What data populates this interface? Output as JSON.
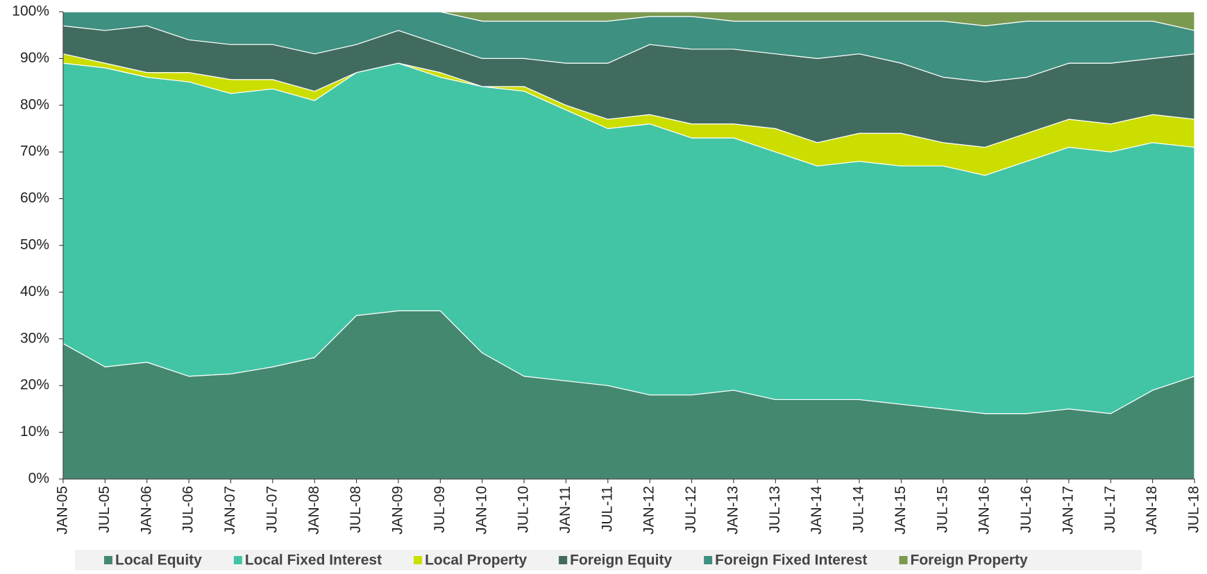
{
  "chart_data": {
    "type": "stacked_area_100",
    "categories": [
      "JAN-05",
      "JUL-05",
      "JAN-06",
      "JUL-06",
      "JAN-07",
      "JUL-07",
      "JAN-08",
      "JUL-08",
      "JAN-09",
      "JUL-09",
      "JAN-10",
      "JUL-10",
      "JAN-11",
      "JUL-11",
      "JAN-12",
      "JUL-12",
      "JAN-13",
      "JUL-13",
      "JAN-14",
      "JUL-14",
      "JAN-15",
      "JUL-15",
      "JAN-16",
      "JUL-16",
      "JAN-17",
      "JUL-17",
      "JAN-18",
      "JUL-18"
    ],
    "series": [
      {
        "name": "Local Equity",
        "color": "#448870",
        "values": [
          29,
          24,
          25,
          22,
          22.5,
          24,
          26,
          35,
          36,
          36,
          27,
          22,
          21,
          20,
          18,
          18,
          19,
          17,
          17,
          17,
          16,
          15,
          14,
          14,
          15,
          14,
          19,
          22
        ]
      },
      {
        "name": "Local Fixed Interest",
        "color": "#42c5a5",
        "values": [
          60,
          64,
          61,
          63,
          60,
          59.5,
          55,
          52,
          53,
          50,
          57,
          61,
          58,
          55,
          58,
          55,
          54,
          53,
          50,
          51,
          51,
          52,
          51,
          54,
          56,
          56,
          53,
          49
        ]
      },
      {
        "name": "Local Property",
        "color": "#ccdd00",
        "values": [
          2,
          1,
          1,
          2,
          3,
          2,
          2,
          0,
          0,
          1,
          0,
          1,
          1,
          2,
          2,
          3,
          3,
          5,
          5,
          6,
          7,
          5,
          6,
          6,
          6,
          6,
          6,
          6
        ]
      },
      {
        "name": "Foreign Equity",
        "color": "#416b5e",
        "values": [
          6,
          7,
          10,
          7,
          7.5,
          7.5,
          8,
          6,
          7,
          6,
          6,
          6,
          9,
          12,
          15,
          16,
          16,
          16,
          18,
          17,
          15,
          14,
          14,
          12,
          12,
          13,
          12,
          14
        ]
      },
      {
        "name": "Foreign Fixed Interest",
        "color": "#3e9080",
        "values": [
          3,
          4,
          3,
          6,
          7,
          7,
          9,
          7,
          4,
          7,
          8,
          8,
          9,
          9,
          6,
          7,
          6,
          7,
          8,
          7,
          9,
          12,
          12,
          12,
          9,
          9,
          8,
          5
        ]
      },
      {
        "name": "Foreign Property",
        "color": "#7b9a50",
        "values": [
          0,
          0,
          0,
          0,
          0,
          0,
          0,
          0,
          0,
          0,
          2,
          2,
          2,
          2,
          1,
          1,
          2,
          2,
          2,
          2,
          2,
          2,
          3,
          2,
          2,
          2,
          2,
          4
        ]
      }
    ],
    "ylim": [
      0,
      100
    ],
    "yticks": [
      {
        "value": 0,
        "label": "0%"
      },
      {
        "value": 10,
        "label": "10%"
      },
      {
        "value": 20,
        "label": "20%"
      },
      {
        "value": 30,
        "label": "30%"
      },
      {
        "value": 40,
        "label": "40%"
      },
      {
        "value": 50,
        "label": "50%"
      },
      {
        "value": 60,
        "label": "60%"
      },
      {
        "value": 70,
        "label": "70%"
      },
      {
        "value": 80,
        "label": "80%"
      },
      {
        "value": 90,
        "label": "90%"
      },
      {
        "value": 100,
        "label": "100%"
      }
    ],
    "legend": "bottom"
  }
}
